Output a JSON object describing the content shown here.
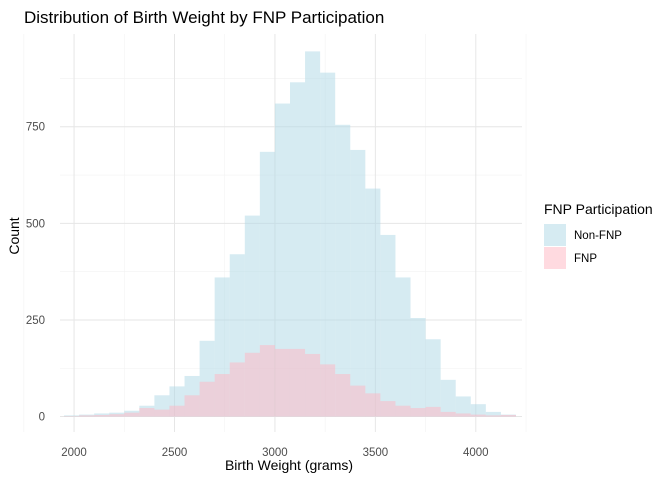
{
  "chart_data": {
    "type": "histogram",
    "title": "Distribution of Birth Weight by FNP Participation",
    "xlabel": "Birth Weight (grams)",
    "ylabel": "Count",
    "xlim": [
      1930,
      4230
    ],
    "ylim": [
      -40,
      990
    ],
    "x_ticks": [
      2000,
      2500,
      3000,
      3500,
      4000
    ],
    "y_ticks": [
      0,
      250,
      500,
      750
    ],
    "grid": true,
    "overlay": "identity",
    "legend": {
      "title": "FNP Participation",
      "position": "right"
    },
    "bin_width": 75,
    "series": [
      {
        "name": "Non-FNP",
        "color": "#ADD8E6",
        "bins": [
          {
            "x0": 1950,
            "x1": 2025,
            "count": 3
          },
          {
            "x0": 2025,
            "x1": 2100,
            "count": 5
          },
          {
            "x0": 2100,
            "x1": 2175,
            "count": 8
          },
          {
            "x0": 2175,
            "x1": 2250,
            "count": 10
          },
          {
            "x0": 2250,
            "x1": 2325,
            "count": 15
          },
          {
            "x0": 2325,
            "x1": 2400,
            "count": 28
          },
          {
            "x0": 2400,
            "x1": 2475,
            "count": 55
          },
          {
            "x0": 2475,
            "x1": 2550,
            "count": 78
          },
          {
            "x0": 2550,
            "x1": 2625,
            "count": 105
          },
          {
            "x0": 2625,
            "x1": 2700,
            "count": 196
          },
          {
            "x0": 2700,
            "x1": 2775,
            "count": 360
          },
          {
            "x0": 2775,
            "x1": 2850,
            "count": 420
          },
          {
            "x0": 2850,
            "x1": 2925,
            "count": 520
          },
          {
            "x0": 2925,
            "x1": 3000,
            "count": 685
          },
          {
            "x0": 3000,
            "x1": 3075,
            "count": 810
          },
          {
            "x0": 3075,
            "x1": 3150,
            "count": 865
          },
          {
            "x0": 3150,
            "x1": 3225,
            "count": 945
          },
          {
            "x0": 3225,
            "x1": 3300,
            "count": 890
          },
          {
            "x0": 3300,
            "x1": 3375,
            "count": 755
          },
          {
            "x0": 3375,
            "x1": 3450,
            "count": 690
          },
          {
            "x0": 3450,
            "x1": 3525,
            "count": 590
          },
          {
            "x0": 3525,
            "x1": 3600,
            "count": 470
          },
          {
            "x0": 3600,
            "x1": 3675,
            "count": 360
          },
          {
            "x0": 3675,
            "x1": 3750,
            "count": 255
          },
          {
            "x0": 3750,
            "x1": 3825,
            "count": 200
          },
          {
            "x0": 3825,
            "x1": 3900,
            "count": 95
          },
          {
            "x0": 3900,
            "x1": 3975,
            "count": 52
          },
          {
            "x0": 3975,
            "x1": 4050,
            "count": 32
          },
          {
            "x0": 4050,
            "x1": 4125,
            "count": 12
          },
          {
            "x0": 4125,
            "x1": 4200,
            "count": 5
          }
        ]
      },
      {
        "name": "FNP",
        "color": "#FFB6C1",
        "bins": [
          {
            "x0": 1950,
            "x1": 2025,
            "count": 1
          },
          {
            "x0": 2025,
            "x1": 2100,
            "count": 3
          },
          {
            "x0": 2100,
            "x1": 2175,
            "count": 4
          },
          {
            "x0": 2175,
            "x1": 2250,
            "count": 6
          },
          {
            "x0": 2250,
            "x1": 2325,
            "count": 10
          },
          {
            "x0": 2325,
            "x1": 2400,
            "count": 22
          },
          {
            "x0": 2400,
            "x1": 2475,
            "count": 18
          },
          {
            "x0": 2475,
            "x1": 2550,
            "count": 28
          },
          {
            "x0": 2550,
            "x1": 2625,
            "count": 55
          },
          {
            "x0": 2625,
            "x1": 2700,
            "count": 90
          },
          {
            "x0": 2700,
            "x1": 2775,
            "count": 110
          },
          {
            "x0": 2775,
            "x1": 2850,
            "count": 140
          },
          {
            "x0": 2850,
            "x1": 2925,
            "count": 165
          },
          {
            "x0": 2925,
            "x1": 3000,
            "count": 185
          },
          {
            "x0": 3000,
            "x1": 3075,
            "count": 175
          },
          {
            "x0": 3075,
            "x1": 3150,
            "count": 175
          },
          {
            "x0": 3150,
            "x1": 3225,
            "count": 162
          },
          {
            "x0": 3225,
            "x1": 3300,
            "count": 135
          },
          {
            "x0": 3300,
            "x1": 3375,
            "count": 110
          },
          {
            "x0": 3375,
            "x1": 3450,
            "count": 80
          },
          {
            "x0": 3450,
            "x1": 3525,
            "count": 60
          },
          {
            "x0": 3525,
            "x1": 3600,
            "count": 40
          },
          {
            "x0": 3600,
            "x1": 3675,
            "count": 28
          },
          {
            "x0": 3675,
            "x1": 3750,
            "count": 22
          },
          {
            "x0": 3750,
            "x1": 3825,
            "count": 25
          },
          {
            "x0": 3825,
            "x1": 3900,
            "count": 12
          },
          {
            "x0": 3900,
            "x1": 3975,
            "count": 8
          },
          {
            "x0": 3975,
            "x1": 4050,
            "count": 5
          },
          {
            "x0": 4050,
            "x1": 4125,
            "count": 3
          },
          {
            "x0": 4125,
            "x1": 4200,
            "count": 4
          }
        ]
      }
    ]
  }
}
